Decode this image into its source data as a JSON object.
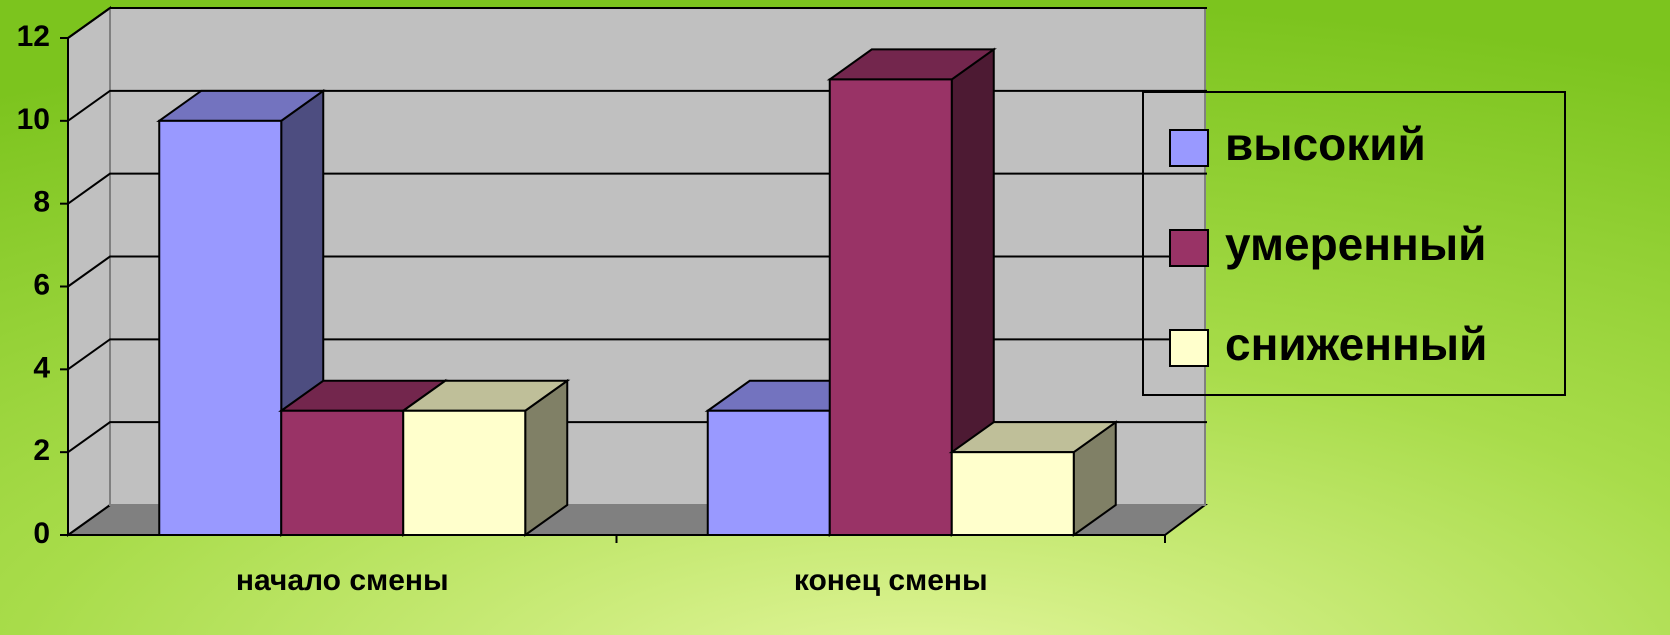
{
  "chart_data": {
    "type": "bar3d",
    "categories": [
      "начало смены",
      "конец смены"
    ],
    "series": [
      {
        "name": "высокий",
        "color": "#9999ff",
        "values": [
          10,
          3
        ]
      },
      {
        "name": "умеренный",
        "color": "#993366",
        "values": [
          3,
          11
        ]
      },
      {
        "name": "сниженный",
        "color": "#ffffcc",
        "values": [
          3,
          2
        ]
      }
    ],
    "ylim": [
      0,
      12
    ],
    "yticks": [
      0,
      2,
      4,
      6,
      8,
      10,
      12
    ],
    "grid": true,
    "legend": "right"
  }
}
